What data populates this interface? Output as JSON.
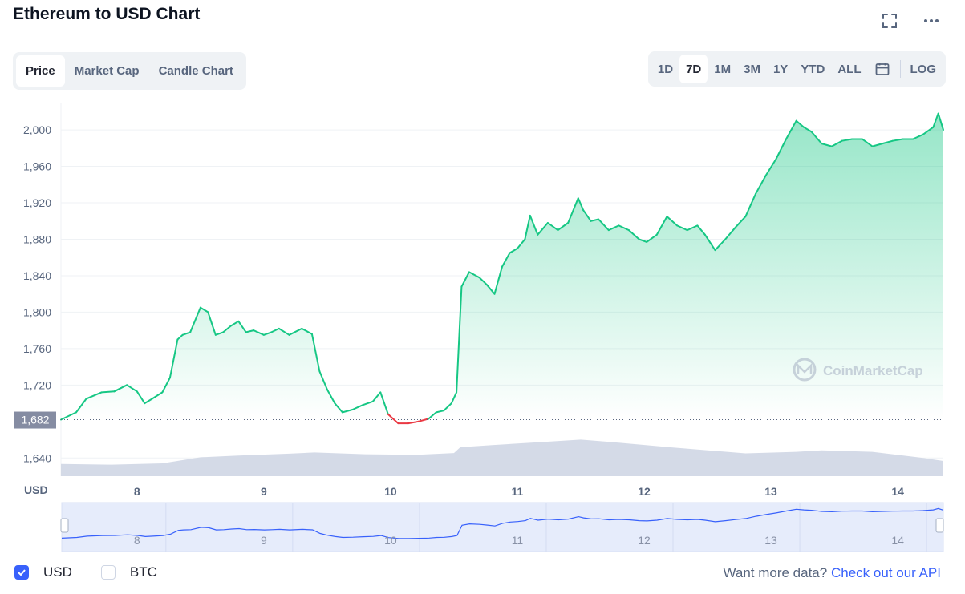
{
  "title": "Ethereum to USD Chart",
  "icons": {
    "fullscreen": "fullscreen-icon",
    "more": "more-dots-icon",
    "calendar": "calendar-icon"
  },
  "tabs": [
    {
      "label": "Price",
      "active": true
    },
    {
      "label": "Market Cap",
      "active": false
    },
    {
      "label": "Candle Chart",
      "active": false
    }
  ],
  "ranges": [
    {
      "label": "1D",
      "active": false
    },
    {
      "label": "7D",
      "active": true
    },
    {
      "label": "1M",
      "active": false
    },
    {
      "label": "3M",
      "active": false
    },
    {
      "label": "1Y",
      "active": false
    },
    {
      "label": "YTD",
      "active": false
    },
    {
      "label": "ALL",
      "active": false
    }
  ],
  "log_label": "LOG",
  "watermark": "CoinMarketCap",
  "legend": {
    "usd": "USD",
    "btc": "BTC",
    "usd_checked": true,
    "btc_checked": false
  },
  "api": {
    "text": "Want more data?",
    "link": "Check out our API"
  },
  "colors": {
    "up": "#16c784",
    "down": "#ea3943",
    "volume": "#cfd6e4",
    "navigator_line": "#3861fb",
    "accent": "#3861fb"
  },
  "chart_data": {
    "type": "area",
    "ylabel": "USD",
    "ylim": [
      1620,
      2030
    ],
    "y_ticks": [
      1640,
      1720,
      1760,
      1800,
      1840,
      1880,
      1920,
      1960,
      2000
    ],
    "y_tick_labels": [
      "1,640",
      "1,720",
      "1,760",
      "1,800",
      "1,840",
      "1,880",
      "1,920",
      "1,960",
      "2,000"
    ],
    "open_price": 1682,
    "open_price_label": "1,682",
    "x_ticks": [
      8,
      9,
      10,
      11,
      12,
      13,
      14
    ],
    "x_tick_labels": [
      "8",
      "9",
      "10",
      "11",
      "12",
      "13",
      "14"
    ],
    "xlim": [
      7.4,
      14.36
    ],
    "price": {
      "x": [
        7.4,
        7.52,
        7.6,
        7.72,
        7.82,
        7.92,
        8.0,
        8.06,
        8.12,
        8.2,
        8.26,
        8.32,
        8.36,
        8.42,
        8.5,
        8.56,
        8.62,
        8.68,
        8.74,
        8.8,
        8.86,
        8.92,
        9.0,
        9.06,
        9.12,
        9.2,
        9.3,
        9.38,
        9.44,
        9.5,
        9.56,
        9.62,
        9.7,
        9.78,
        9.86,
        9.92,
        9.98,
        10.06,
        10.14,
        10.22,
        10.3,
        10.36,
        10.42,
        10.48,
        10.52,
        10.56,
        10.62,
        10.7,
        10.76,
        10.82,
        10.88,
        10.94,
        11.0,
        11.06,
        11.1,
        11.16,
        11.24,
        11.32,
        11.4,
        11.48,
        11.52,
        11.58,
        11.64,
        11.72,
        11.8,
        11.88,
        11.96,
        12.02,
        12.1,
        12.18,
        12.26,
        12.34,
        12.42,
        12.48,
        12.56,
        12.64,
        12.72,
        12.8,
        12.88,
        12.96,
        13.04,
        13.12,
        13.2,
        13.26,
        13.32,
        13.4,
        13.48,
        13.56,
        13.64,
        13.72,
        13.8,
        13.88,
        13.96,
        14.04,
        14.12,
        14.2,
        14.28,
        14.32,
        14.36
      ],
      "y": [
        1682,
        1690,
        1705,
        1712,
        1713,
        1720,
        1713,
        1700,
        1705,
        1712,
        1728,
        1770,
        1775,
        1778,
        1805,
        1800,
        1775,
        1778,
        1785,
        1790,
        1778,
        1780,
        1775,
        1778,
        1782,
        1775,
        1782,
        1776,
        1735,
        1715,
        1700,
        1690,
        1693,
        1698,
        1702,
        1712,
        1688,
        1678,
        1678,
        1680,
        1683,
        1690,
        1692,
        1700,
        1712,
        1828,
        1844,
        1838,
        1830,
        1820,
        1850,
        1865,
        1870,
        1880,
        1906,
        1885,
        1898,
        1890,
        1898,
        1925,
        1912,
        1900,
        1902,
        1890,
        1895,
        1890,
        1880,
        1877,
        1885,
        1905,
        1895,
        1890,
        1895,
        1885,
        1868,
        1880,
        1893,
        1905,
        1930,
        1950,
        1968,
        1990,
        2010,
        2003,
        1998,
        1985,
        1982,
        1988,
        1990,
        1990,
        1982,
        1985,
        1988,
        1990,
        1990,
        1995,
        2003,
        2018,
        2000
      ]
    },
    "volume": {
      "x": [
        7.4,
        7.8,
        8.2,
        8.5,
        8.8,
        9.2,
        9.4,
        9.8,
        10.2,
        10.5,
        10.55,
        10.8,
        11.2,
        11.5,
        11.8,
        12.2,
        12.5,
        12.8,
        13.2,
        13.4,
        13.8,
        14.2,
        14.36
      ],
      "y": [
        0.4,
        0.38,
        0.42,
        0.62,
        0.68,
        0.74,
        0.78,
        0.72,
        0.7,
        0.76,
        0.95,
        1.02,
        1.12,
        1.2,
        1.1,
        0.95,
        0.85,
        0.75,
        0.8,
        0.85,
        0.8,
        0.6,
        0.5
      ]
    },
    "navigator_x_labels": [
      "8",
      "9",
      "10",
      "11",
      "12",
      "13",
      "14"
    ],
    "grid": true
  }
}
